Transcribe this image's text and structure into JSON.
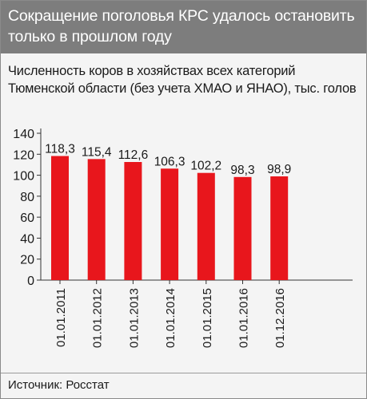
{
  "header": {
    "title": "Сокращение поголовья КРС удалось остановить только в прошлом году"
  },
  "footer": {
    "source": "Источник: Росстат"
  },
  "colors": {
    "header_bg": "#7d7d7d",
    "bar": "#e8161c",
    "panel_bg": "#f4f4f4"
  },
  "chart_data": {
    "type": "bar",
    "title": "Численность коров в хозяйствах всех категорий Тюменской области (без учета ХМАО и ЯНАО), тыс. голов",
    "categories": [
      "01.01.2011",
      "01.01.2012",
      "01.01.2013",
      "01.01.2014",
      "01.01.2015",
      "01.01.2016",
      "01.12.2016"
    ],
    "values": [
      118.3,
      115.4,
      112.6,
      106.3,
      102.2,
      98.3,
      98.9
    ],
    "value_labels": [
      "118,3",
      "115,4",
      "112,6",
      "106,3",
      "102,2",
      "98,3",
      "98,9"
    ],
    "yticks": [
      0,
      20,
      40,
      60,
      80,
      100,
      120,
      140
    ],
    "ylim": [
      0,
      140
    ],
    "grid": false,
    "legend": "none"
  }
}
